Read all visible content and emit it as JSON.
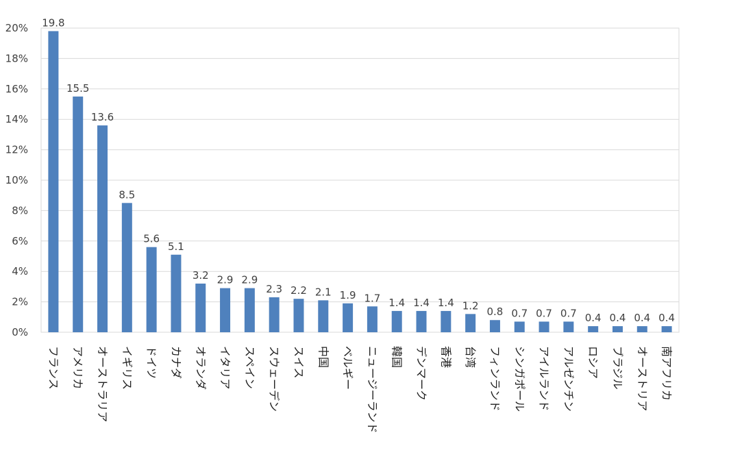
{
  "chart_data": {
    "type": "bar",
    "title": "",
    "xlabel": "",
    "ylabel": "",
    "ylim": [
      0,
      20
    ],
    "y_ticks": [
      "0%",
      "2%",
      "4%",
      "6%",
      "8%",
      "10%",
      "12%",
      "14%",
      "16%",
      "18%",
      "20%"
    ],
    "grid": true,
    "bar_color": "#4f81bd",
    "categories": [
      "フランス",
      "アメリカ",
      "オーストラリア",
      "イギリス",
      "ドイツ",
      "カナダ",
      "オランダ",
      "イタリア",
      "スペイン",
      "スウェーデン",
      "スイス",
      "中国",
      "ベルギー",
      "ニュージーランド",
      "韓国",
      "デンマーク",
      "香港",
      "台湾",
      "フィンランド",
      "シンガポール",
      "アイルランド",
      "アルゼンチン",
      "ロシア",
      "ブラジル",
      "オーストリア",
      "南アフリカ"
    ],
    "values": [
      19.8,
      15.5,
      13.6,
      8.5,
      5.6,
      5.1,
      3.2,
      2.9,
      2.9,
      2.3,
      2.2,
      2.1,
      1.9,
      1.7,
      1.4,
      1.4,
      1.4,
      1.2,
      0.8,
      0.7,
      0.7,
      0.7,
      0.4,
      0.4,
      0.4,
      0.4
    ],
    "data_labels": [
      "19.8",
      "15.5",
      "13.6",
      "8.5",
      "5.6",
      "5.1",
      "3.2",
      "2.9",
      "2.9",
      "2.3",
      "2.2",
      "2.1",
      "1.9",
      "1.7",
      "1.4",
      "1.4",
      "1.4",
      "1.2",
      "0.8",
      "0.7",
      "0.7",
      "0.7",
      "0.4",
      "0.4",
      "0.4",
      "0.4"
    ]
  }
}
